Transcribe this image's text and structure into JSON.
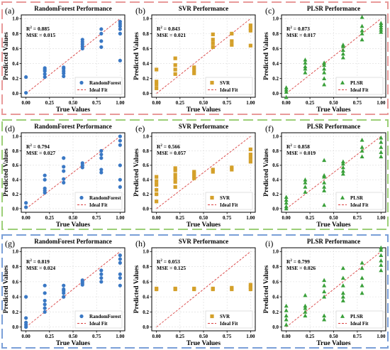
{
  "figure": {
    "common": {
      "xlabel": "True Values",
      "ylabel": "Predicted Values",
      "ideal_label": "Ideal Fit",
      "xticks": [
        "0.00",
        "0.25",
        "0.50",
        "0.75",
        "1.00"
      ],
      "yticks": [
        "0.0",
        "0.2",
        "0.4",
        "0.6",
        "0.8",
        "1.0"
      ],
      "xlim": [
        -0.05,
        1.05
      ],
      "ylim": [
        -0.05,
        1.05
      ],
      "grid": true
    },
    "rows": [
      {
        "border_color": "#e89a9a"
      },
      {
        "border_color": "#9ccf78"
      },
      {
        "border_color": "#7a9fd8"
      }
    ]
  },
  "chart_data": [
    {
      "panel": "(a)",
      "type": "scatter",
      "title": "RandomForest Performance",
      "r2": "0.885",
      "mse": "MSE = 0.015",
      "series_name": "RandomForest",
      "marker": "circle",
      "color": "#3a78c4",
      "points": [
        [
          0,
          0.01
        ],
        [
          0,
          0.22
        ],
        [
          0.2,
          0.22
        ],
        [
          0.2,
          0.26
        ],
        [
          0.2,
          0.3
        ],
        [
          0.2,
          0.32
        ],
        [
          0.2,
          0.34
        ],
        [
          0.4,
          0.23
        ],
        [
          0.4,
          0.27
        ],
        [
          0.4,
          0.3
        ],
        [
          0.4,
          0.33
        ],
        [
          0.4,
          0.35
        ],
        [
          0.6,
          0.6
        ],
        [
          0.6,
          0.63
        ],
        [
          0.6,
          0.66
        ],
        [
          0.6,
          0.69
        ],
        [
          0.6,
          0.72
        ],
        [
          0.8,
          0.62
        ],
        [
          0.8,
          0.7
        ],
        [
          0.8,
          0.8
        ],
        [
          0.8,
          0.86
        ],
        [
          1,
          0.44
        ],
        [
          1,
          0.8
        ],
        [
          1,
          0.86
        ],
        [
          1,
          0.9
        ],
        [
          1,
          0.93
        ],
        [
          1,
          0.96
        ]
      ]
    },
    {
      "panel": "(b)",
      "type": "scatter",
      "title": "SVR Performance",
      "r2": "0.843",
      "mse": "MSE = 0.021",
      "series_name": "SVR",
      "marker": "square",
      "color": "#d4a02a",
      "points": [
        [
          0,
          0.07
        ],
        [
          0,
          0.12
        ],
        [
          0,
          0.16
        ],
        [
          0,
          0.32
        ],
        [
          0.2,
          0.26
        ],
        [
          0.2,
          0.32
        ],
        [
          0.2,
          0.38
        ],
        [
          0.2,
          0.47
        ],
        [
          0.4,
          0.27
        ],
        [
          0.4,
          0.31
        ],
        [
          0.4,
          0.35
        ],
        [
          0.6,
          0.62
        ],
        [
          0.6,
          0.67
        ],
        [
          0.6,
          0.72
        ],
        [
          0.6,
          0.79
        ],
        [
          0.8,
          0.65
        ],
        [
          0.8,
          0.7
        ],
        [
          0.8,
          0.8
        ],
        [
          1,
          0.64
        ],
        [
          1,
          0.84
        ],
        [
          1,
          0.87
        ],
        [
          1,
          0.91
        ]
      ]
    },
    {
      "panel": "(c)",
      "type": "scatter",
      "title": "PLSR Performance",
      "r2": "0.873",
      "mse": "MSE = 0.017",
      "series_name": "PLSR",
      "marker": "triangle",
      "color": "#3aa03a",
      "points": [
        [
          0,
          -0.05
        ],
        [
          0,
          0.02
        ],
        [
          0,
          0.05
        ],
        [
          0,
          0.08
        ],
        [
          0.2,
          0.28
        ],
        [
          0.2,
          0.33
        ],
        [
          0.2,
          0.36
        ],
        [
          0.2,
          0.41
        ],
        [
          0.2,
          0.45
        ],
        [
          0.4,
          0.12
        ],
        [
          0.4,
          0.2
        ],
        [
          0.4,
          0.28
        ],
        [
          0.4,
          0.33
        ],
        [
          0.4,
          0.38
        ],
        [
          0.4,
          0.41
        ],
        [
          0.6,
          0.48
        ],
        [
          0.6,
          0.53
        ],
        [
          0.6,
          0.58
        ],
        [
          0.6,
          0.63
        ],
        [
          0.6,
          0.65
        ],
        [
          0.8,
          0.72
        ],
        [
          0.8,
          0.8
        ],
        [
          0.8,
          0.84
        ],
        [
          0.8,
          0.9
        ],
        [
          0.8,
          1.02
        ],
        [
          1,
          0.82
        ],
        [
          1,
          0.85
        ],
        [
          1,
          0.88
        ],
        [
          1,
          0.91
        ],
        [
          1,
          0.94
        ]
      ]
    },
    {
      "panel": "(d)",
      "type": "scatter",
      "title": "RandomForest Performance",
      "r2": "0.794",
      "mse": "MSE = 0.027",
      "series_name": "RandomForest",
      "marker": "circle",
      "color": "#3a78c4",
      "points": [
        [
          0,
          0.02
        ],
        [
          0,
          0.08
        ],
        [
          0.2,
          0.22
        ],
        [
          0.2,
          0.25
        ],
        [
          0.2,
          0.28
        ],
        [
          0.2,
          0.4
        ],
        [
          0.2,
          0.46
        ],
        [
          0.4,
          0.36
        ],
        [
          0.4,
          0.41
        ],
        [
          0.4,
          0.52
        ],
        [
          0.4,
          0.58
        ],
        [
          0.4,
          0.7
        ],
        [
          0.6,
          0.57
        ],
        [
          0.6,
          0.6
        ],
        [
          0.6,
          0.63
        ],
        [
          0.8,
          0.5
        ],
        [
          0.8,
          0.54
        ],
        [
          0.8,
          0.7
        ],
        [
          0.8,
          0.75
        ],
        [
          0.8,
          0.8
        ],
        [
          1,
          0.3
        ],
        [
          1,
          0.4
        ],
        [
          1,
          0.6
        ],
        [
          1,
          0.88
        ],
        [
          1,
          0.94
        ],
        [
          1,
          1.0
        ]
      ]
    },
    {
      "panel": "(e)",
      "type": "scatter",
      "title": "SVR Performance",
      "r2": "0.566",
      "mse": "MSE = 0.057",
      "series_name": "SVR",
      "marker": "square",
      "color": "#d4a02a",
      "points": [
        [
          0,
          0.1
        ],
        [
          0,
          0.2
        ],
        [
          0,
          0.26
        ],
        [
          0,
          0.33
        ],
        [
          0,
          0.38
        ],
        [
          0,
          0.44
        ],
        [
          0.2,
          0.3
        ],
        [
          0.2,
          0.37
        ],
        [
          0.2,
          0.42
        ],
        [
          0.2,
          0.47
        ],
        [
          0.2,
          0.53
        ],
        [
          0.2,
          0.56
        ],
        [
          0.4,
          0.42
        ],
        [
          0.4,
          0.45
        ],
        [
          0.4,
          0.48
        ],
        [
          0.4,
          0.51
        ],
        [
          0.6,
          0.51
        ],
        [
          0.6,
          0.54
        ],
        [
          0.8,
          0.54
        ],
        [
          0.8,
          0.57
        ],
        [
          1,
          0.65
        ],
        [
          1,
          0.7
        ],
        [
          1,
          0.75
        ],
        [
          1,
          0.82
        ]
      ]
    },
    {
      "panel": "(f)",
      "type": "scatter",
      "title": "PLSR Performance",
      "r2": "0.858",
      "mse": "MSE = 0.019",
      "series_name": "PLSR",
      "marker": "triangle",
      "color": "#3aa03a",
      "points": [
        [
          0,
          0.0
        ],
        [
          0,
          0.03
        ],
        [
          0,
          0.08
        ],
        [
          0,
          0.12
        ],
        [
          0,
          0.16
        ],
        [
          0.2,
          0.23
        ],
        [
          0.2,
          0.3
        ],
        [
          0.2,
          0.36
        ],
        [
          0.2,
          0.4
        ],
        [
          0.4,
          0.05
        ],
        [
          0.4,
          0.25
        ],
        [
          0.4,
          0.3
        ],
        [
          0.4,
          0.36
        ],
        [
          0.4,
          0.44
        ],
        [
          0.4,
          0.46
        ],
        [
          0.4,
          0.67
        ],
        [
          0.6,
          0.48
        ],
        [
          0.6,
          0.52
        ],
        [
          0.6,
          0.57
        ],
        [
          0.6,
          0.62
        ],
        [
          0.6,
          0.65
        ],
        [
          0.8,
          0.72
        ],
        [
          0.8,
          0.8
        ],
        [
          0.8,
          0.85
        ],
        [
          0.8,
          0.95
        ],
        [
          1,
          0.72
        ],
        [
          1,
          0.78
        ],
        [
          1,
          0.85
        ],
        [
          1,
          0.92
        ],
        [
          1,
          0.98
        ]
      ]
    },
    {
      "panel": "(g)",
      "type": "scatter",
      "title": "RandomForest Performance",
      "r2": "0.819",
      "mse": "MSE = 0.024",
      "series_name": "RandomForest",
      "marker": "circle",
      "color": "#3a78c4",
      "points": [
        [
          0,
          0.0
        ],
        [
          0,
          0.03
        ],
        [
          0,
          0.06
        ],
        [
          0,
          0.12
        ],
        [
          0,
          0.4
        ],
        [
          0.2,
          0.2
        ],
        [
          0.2,
          0.25
        ],
        [
          0.2,
          0.3
        ],
        [
          0.2,
          0.35
        ],
        [
          0.2,
          0.45
        ],
        [
          0.2,
          0.55
        ],
        [
          0.4,
          0.4
        ],
        [
          0.4,
          0.45
        ],
        [
          0.4,
          0.48
        ],
        [
          0.4,
          0.5
        ],
        [
          0.4,
          0.55
        ],
        [
          0.6,
          0.56
        ],
        [
          0.6,
          0.58
        ],
        [
          0.6,
          0.6
        ],
        [
          0.6,
          0.62
        ],
        [
          0.8,
          0.6
        ],
        [
          0.8,
          0.65
        ],
        [
          0.8,
          0.7
        ],
        [
          0.8,
          0.75
        ],
        [
          1,
          0.55
        ],
        [
          1,
          0.65
        ],
        [
          1,
          0.7
        ],
        [
          1,
          0.85
        ],
        [
          1,
          0.9
        ],
        [
          1,
          0.95
        ]
      ]
    },
    {
      "panel": "(h)",
      "type": "scatter",
      "title": "SVR Performance",
      "r2": "0.053",
      "mse": "MSE = 0.125",
      "series_name": "SVR",
      "marker": "square",
      "color": "#d4a02a",
      "points": [
        [
          0,
          0.5
        ],
        [
          0,
          0.51
        ],
        [
          0.2,
          0.5
        ],
        [
          0.2,
          0.51
        ],
        [
          0.4,
          0.5
        ],
        [
          0.4,
          0.51
        ],
        [
          0.6,
          0.5
        ],
        [
          0.6,
          0.51
        ],
        [
          0.8,
          0.5
        ],
        [
          0.8,
          0.52
        ],
        [
          1,
          0.5
        ],
        [
          1,
          0.53
        ],
        [
          1,
          0.56
        ]
      ]
    },
    {
      "panel": "(i)",
      "type": "scatter",
      "title": "PLSR Performance",
      "r2": "0.799",
      "mse": "MSE = 0.026",
      "series_name": "PLSR",
      "marker": "triangle",
      "color": "#3aa03a",
      "points": [
        [
          0,
          0.03
        ],
        [
          0,
          0.1
        ],
        [
          0,
          0.15
        ],
        [
          0,
          0.22
        ],
        [
          0,
          0.28
        ],
        [
          0.2,
          0.15
        ],
        [
          0.2,
          0.2
        ],
        [
          0.2,
          0.25
        ],
        [
          0.2,
          0.28
        ],
        [
          0.2,
          0.42
        ],
        [
          0.4,
          0.1
        ],
        [
          0.4,
          0.15
        ],
        [
          0.4,
          0.4
        ],
        [
          0.4,
          0.47
        ],
        [
          0.4,
          0.55
        ],
        [
          0.4,
          0.62
        ],
        [
          0.6,
          0.35
        ],
        [
          0.6,
          0.4
        ],
        [
          0.6,
          0.45
        ],
        [
          0.6,
          0.55
        ],
        [
          0.6,
          0.65
        ],
        [
          0.6,
          0.78
        ],
        [
          0.8,
          0.45
        ],
        [
          0.8,
          0.55
        ],
        [
          0.8,
          0.65
        ],
        [
          0.8,
          0.78
        ],
        [
          0.8,
          0.85
        ],
        [
          1,
          0.75
        ],
        [
          1,
          0.82
        ],
        [
          1,
          0.88
        ],
        [
          1,
          0.95
        ],
        [
          1,
          1.02
        ],
        [
          1,
          1.05
        ]
      ]
    }
  ]
}
